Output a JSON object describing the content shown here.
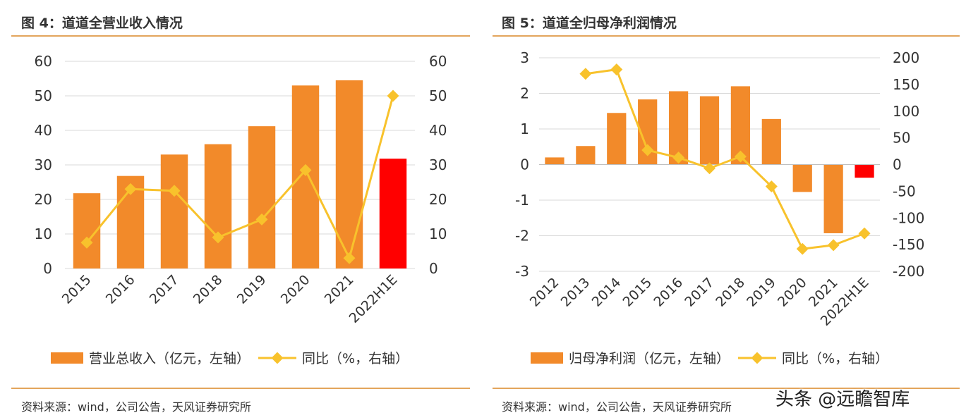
{
  "left_panel": {
    "title": "图 4：道道全营业收入情况",
    "legend_bar": "营业总收入（亿元，左轴）",
    "legend_line": "同比（%，右轴）",
    "source": "资料来源：wind，公司公告，天风证券研究所"
  },
  "right_panel": {
    "title": "图 5：道道全归母净利润情况",
    "legend_bar": "归母净利润（亿元，左轴）",
    "legend_line": "同比（%，右轴）",
    "source": "资料来源：wind，公司公告，天风证券研究所"
  },
  "watermark": "头条 @远瞻智库",
  "colors": {
    "bar": "#f28a2a",
    "bar_highlight": "#ff0000",
    "line": "#f8c22c",
    "grid": "#d9d9d9",
    "rule": "#e3a55c",
    "text": "#333333"
  },
  "chart_data": [
    {
      "type": "bar",
      "categories": [
        "2015",
        "2016",
        "2017",
        "2018",
        "2019",
        "2020",
        "2021",
        "2022H1E"
      ],
      "series": [
        {
          "name": "营业总收入（亿元，左轴）",
          "type": "bar",
          "axis": "left",
          "values": [
            21.8,
            26.8,
            33,
            36,
            41.2,
            53,
            54.5,
            31.8
          ],
          "highlight_index": 7
        },
        {
          "name": "同比（%，右轴）",
          "type": "line",
          "axis": "right",
          "values": [
            7.5,
            23,
            22.5,
            9,
            14.2,
            28.5,
            3,
            50
          ]
        }
      ],
      "ylim_left": [
        0,
        60
      ],
      "yticks_left": [
        0,
        10,
        20,
        30,
        40,
        50,
        60
      ],
      "ylim_right": [
        0,
        60
      ],
      "yticks_right": [
        0,
        10,
        20,
        30,
        40,
        50,
        60
      ],
      "grid": true,
      "legend_position": "bottom"
    },
    {
      "type": "bar",
      "categories": [
        "2012",
        "2013",
        "2014",
        "2015",
        "2016",
        "2017",
        "2018",
        "2019",
        "2020",
        "2021",
        "2022H1E"
      ],
      "series": [
        {
          "name": "归母净利润（亿元，左轴）",
          "type": "bar",
          "axis": "left",
          "values": [
            0.2,
            0.52,
            1.45,
            1.83,
            2.06,
            1.92,
            2.2,
            1.28,
            -0.77,
            -1.93,
            -0.37
          ],
          "highlight_index": 10
        },
        {
          "name": "同比（%，右轴）",
          "type": "line",
          "axis": "right",
          "values": [
            null,
            170,
            178,
            27,
            13,
            -7,
            15,
            -41,
            -158,
            -151,
            -129
          ]
        }
      ],
      "ylim_left": [
        -3,
        3
      ],
      "yticks_left": [
        -3,
        -2,
        -1,
        0,
        1,
        2,
        3
      ],
      "ylim_right": [
        -200,
        200
      ],
      "yticks_right": [
        -200,
        -150,
        -100,
        -50,
        0,
        50,
        100,
        150,
        200
      ],
      "grid": true,
      "legend_position": "bottom"
    }
  ]
}
